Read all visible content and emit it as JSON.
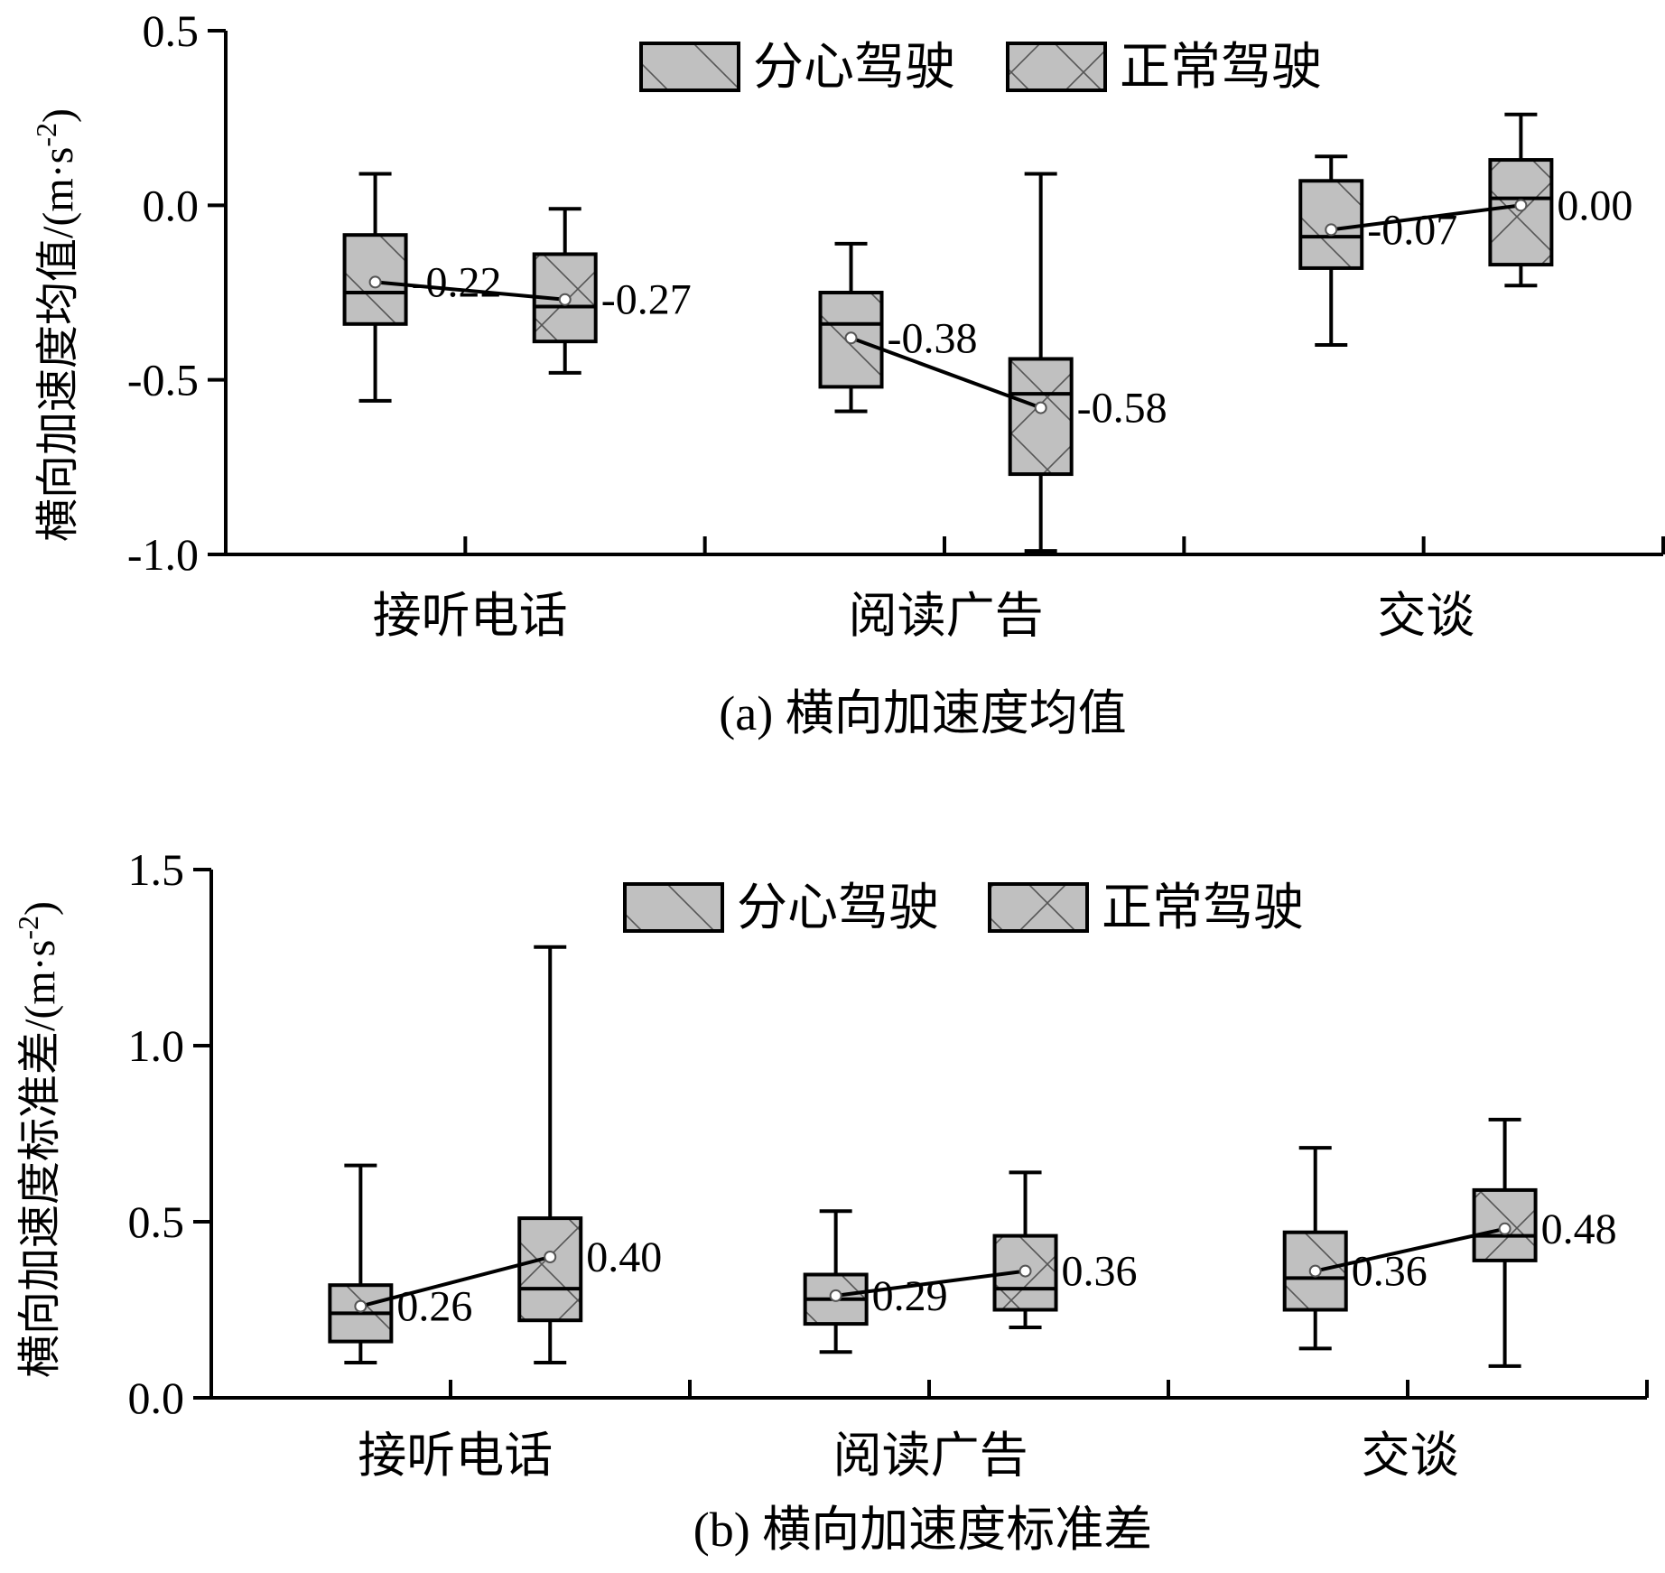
{
  "legend": {
    "distracted": "分心驾驶",
    "normal": "正常驾驶"
  },
  "colors": {
    "box_fill": "#c0c0c0",
    "stroke": "#000000",
    "mean_marker": "#ffffff"
  },
  "chart_data": [
    {
      "type": "boxplot",
      "caption": "(a) 横向加速度均值",
      "ylabel": "横向加速度均值/(m·s",
      "ylabel_sup": "-2",
      "ylabel_close": ")",
      "ylim": [
        -1.0,
        0.5
      ],
      "yticks": [
        -1.0,
        -0.5,
        0.0,
        0.5
      ],
      "ytick_labels": [
        "-1.0",
        "-0.5",
        "0.0",
        "0.5"
      ],
      "categories": [
        "接听电话",
        "阅读广告",
        "交谈"
      ],
      "series": [
        {
          "name": "分心驾驶",
          "pattern": "single-hatch",
          "boxes": [
            {
              "whisker_low": -0.56,
              "q1": -0.34,
              "median": -0.25,
              "q3": -0.085,
              "whisker_high": 0.09,
              "mean": -0.22,
              "mean_label": "-0.22"
            },
            {
              "whisker_low": -0.59,
              "q1": -0.52,
              "median": -0.34,
              "q3": -0.25,
              "whisker_high": -0.11,
              "mean": -0.38,
              "mean_label": "-0.38"
            },
            {
              "whisker_low": -0.4,
              "q1": -0.18,
              "median": -0.09,
              "q3": 0.07,
              "whisker_high": 0.14,
              "mean": -0.07,
              "mean_label": "-0.07"
            }
          ]
        },
        {
          "name": "正常驾驶",
          "pattern": "cross-hatch",
          "boxes": [
            {
              "whisker_low": -0.48,
              "q1": -0.39,
              "median": -0.29,
              "q3": -0.14,
              "whisker_high": -0.01,
              "mean": -0.27,
              "mean_label": "-0.27"
            },
            {
              "whisker_low": -0.99,
              "q1": -0.77,
              "median": -0.54,
              "q3": -0.44,
              "whisker_high": 0.09,
              "mean": -0.58,
              "mean_label": "-0.58"
            },
            {
              "whisker_low": -0.23,
              "q1": -0.17,
              "median": 0.02,
              "q3": 0.13,
              "whisker_high": 0.26,
              "mean": 0.0,
              "mean_label": "0.00"
            }
          ]
        }
      ]
    },
    {
      "type": "boxplot",
      "caption": "(b) 横向加速度标准差",
      "ylabel": "横向加速度标准差/(m·s",
      "ylabel_sup": "-2",
      "ylabel_close": ")",
      "ylim": [
        0.0,
        1.5
      ],
      "yticks": [
        0.0,
        0.5,
        1.0,
        1.5
      ],
      "ytick_labels": [
        "0.0",
        "0.5",
        "1.0",
        "1.5"
      ],
      "categories": [
        "接听电话",
        "阅读广告",
        "交谈"
      ],
      "series": [
        {
          "name": "分心驾驶",
          "pattern": "single-hatch",
          "boxes": [
            {
              "whisker_low": 0.1,
              "q1": 0.16,
              "median": 0.24,
              "q3": 0.32,
              "whisker_high": 0.66,
              "mean": 0.26,
              "mean_label": "0.26"
            },
            {
              "whisker_low": 0.13,
              "q1": 0.21,
              "median": 0.28,
              "q3": 0.35,
              "whisker_high": 0.53,
              "mean": 0.29,
              "mean_label": "0.29"
            },
            {
              "whisker_low": 0.14,
              "q1": 0.25,
              "median": 0.34,
              "q3": 0.47,
              "whisker_high": 0.71,
              "mean": 0.36,
              "mean_label": "0.36"
            }
          ]
        },
        {
          "name": "正常驾驶",
          "pattern": "cross-hatch",
          "boxes": [
            {
              "whisker_low": 0.1,
              "q1": 0.22,
              "median": 0.31,
              "q3": 0.51,
              "whisker_high": 1.28,
              "mean": 0.4,
              "mean_label": "0.40"
            },
            {
              "whisker_low": 0.2,
              "q1": 0.25,
              "median": 0.31,
              "q3": 0.46,
              "whisker_high": 0.64,
              "mean": 0.36,
              "mean_label": "0.36"
            },
            {
              "whisker_low": 0.09,
              "q1": 0.39,
              "median": 0.46,
              "q3": 0.59,
              "whisker_high": 0.79,
              "mean": 0.48,
              "mean_label": "0.48"
            }
          ]
        }
      ]
    }
  ]
}
